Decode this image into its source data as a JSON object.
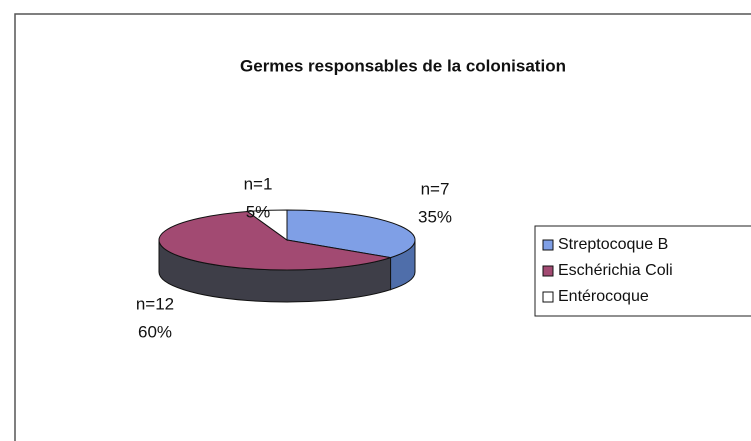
{
  "chart_data": {
    "type": "pie3d",
    "title": "Germes responsables de la colonisation",
    "categories": [
      "Streptocoque B",
      "Eschérichia Coli",
      "Entérocoque"
    ],
    "values": [
      35,
      60,
      5
    ],
    "value_labels": [
      "35%",
      "60%",
      "5%"
    ],
    "count_labels": [
      "n=7",
      "n=12",
      "n=1"
    ],
    "colors": [
      "#7f9fe6",
      "#a24a72",
      "#ffffff"
    ],
    "side_colors": [
      "#4f6eaa",
      "#3e3e48",
      "#f4f4f4"
    ],
    "legend": "right"
  }
}
